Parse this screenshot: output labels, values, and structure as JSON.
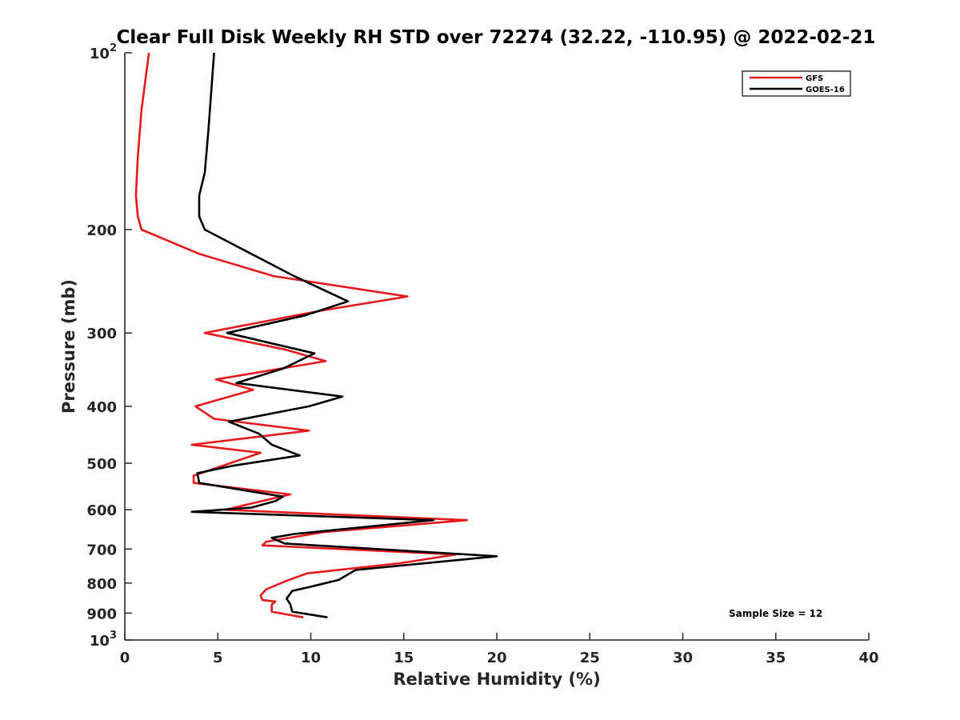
{
  "chart_data": {
    "type": "line",
    "title": "Clear Full Disk Weekly RH STD over 72274 (32.22, -110.95) @ 2022-02-21",
    "xlabel": "Relative Humidity (%)",
    "ylabel": "Pressure (mb)",
    "xlim": [
      0,
      40
    ],
    "ylim": [
      100,
      1000
    ],
    "yscale": "log",
    "y_reversed": true,
    "x_ticks": [
      "0",
      "5",
      "10",
      "15",
      "20",
      "25",
      "30",
      "35",
      "40"
    ],
    "y_ticks": [
      {
        "value": 100,
        "base": "10",
        "exp": "2"
      },
      {
        "value": 200,
        "base": "200",
        "exp": ""
      },
      {
        "value": 300,
        "base": "300",
        "exp": ""
      },
      {
        "value": 400,
        "base": "400",
        "exp": ""
      },
      {
        "value": 500,
        "base": "500",
        "exp": ""
      },
      {
        "value": 600,
        "base": "600",
        "exp": ""
      },
      {
        "value": 700,
        "base": "700",
        "exp": ""
      },
      {
        "value": 800,
        "base": "800",
        "exp": ""
      },
      {
        "value": 900,
        "base": "900",
        "exp": ""
      },
      {
        "value": 1000,
        "base": "10",
        "exp": "3"
      }
    ],
    "grid": false,
    "legend_position": "top-right",
    "annotation": "Sample Size = 12",
    "series": [
      {
        "name": "GFS",
        "color": "#e41a1c",
        "points": [
          [
            1.3,
            100
          ],
          [
            0.9,
            125
          ],
          [
            0.7,
            150
          ],
          [
            0.6,
            175
          ],
          [
            0.7,
            190
          ],
          [
            0.9,
            200
          ],
          [
            4.0,
            220
          ],
          [
            8.0,
            240
          ],
          [
            15.2,
            260
          ],
          [
            10.5,
            275
          ],
          [
            4.3,
            300
          ],
          [
            8.6,
            320
          ],
          [
            10.8,
            335
          ],
          [
            4.9,
            360
          ],
          [
            6.9,
            375
          ],
          [
            3.8,
            400
          ],
          [
            4.8,
            420
          ],
          [
            9.9,
            440
          ],
          [
            3.6,
            465
          ],
          [
            7.3,
            480
          ],
          [
            3.7,
            525
          ],
          [
            3.7,
            540
          ],
          [
            8.9,
            565
          ],
          [
            5.4,
            600
          ],
          [
            18.4,
            625
          ],
          [
            10.7,
            655
          ],
          [
            7.6,
            680
          ],
          [
            7.4,
            690
          ],
          [
            17.8,
            715
          ],
          [
            14.8,
            740
          ],
          [
            9.8,
            770
          ],
          [
            8.6,
            795
          ],
          [
            7.6,
            820
          ],
          [
            7.3,
            840
          ],
          [
            7.4,
            855
          ],
          [
            8.1,
            860
          ],
          [
            7.9,
            870
          ],
          [
            7.9,
            895
          ],
          [
            9.6,
            915
          ]
        ]
      },
      {
        "name": "GOES-16",
        "color": "#000000",
        "points": [
          [
            4.8,
            100
          ],
          [
            4.5,
            135
          ],
          [
            4.3,
            160
          ],
          [
            4.0,
            175
          ],
          [
            4.0,
            190
          ],
          [
            4.3,
            200
          ],
          [
            6.8,
            220
          ],
          [
            9.1,
            240
          ],
          [
            12.0,
            265
          ],
          [
            9.7,
            280
          ],
          [
            5.5,
            300
          ],
          [
            10.2,
            325
          ],
          [
            8.5,
            345
          ],
          [
            6.0,
            365
          ],
          [
            11.7,
            385
          ],
          [
            9.9,
            400
          ],
          [
            5.6,
            425
          ],
          [
            7.2,
            445
          ],
          [
            7.9,
            465
          ],
          [
            9.4,
            485
          ],
          [
            5.8,
            505
          ],
          [
            3.9,
            520
          ],
          [
            4.0,
            540
          ],
          [
            8.5,
            570
          ],
          [
            8.1,
            580
          ],
          [
            6.8,
            595
          ],
          [
            3.6,
            605
          ],
          [
            16.6,
            625
          ],
          [
            9.1,
            660
          ],
          [
            7.9,
            670
          ],
          [
            8.6,
            685
          ],
          [
            20.0,
            720
          ],
          [
            12.4,
            760
          ],
          [
            11.5,
            790
          ],
          [
            10.1,
            810
          ],
          [
            9.0,
            825
          ],
          [
            8.7,
            850
          ],
          [
            8.9,
            870
          ],
          [
            9.0,
            895
          ],
          [
            10.9,
            915
          ]
        ]
      }
    ]
  }
}
